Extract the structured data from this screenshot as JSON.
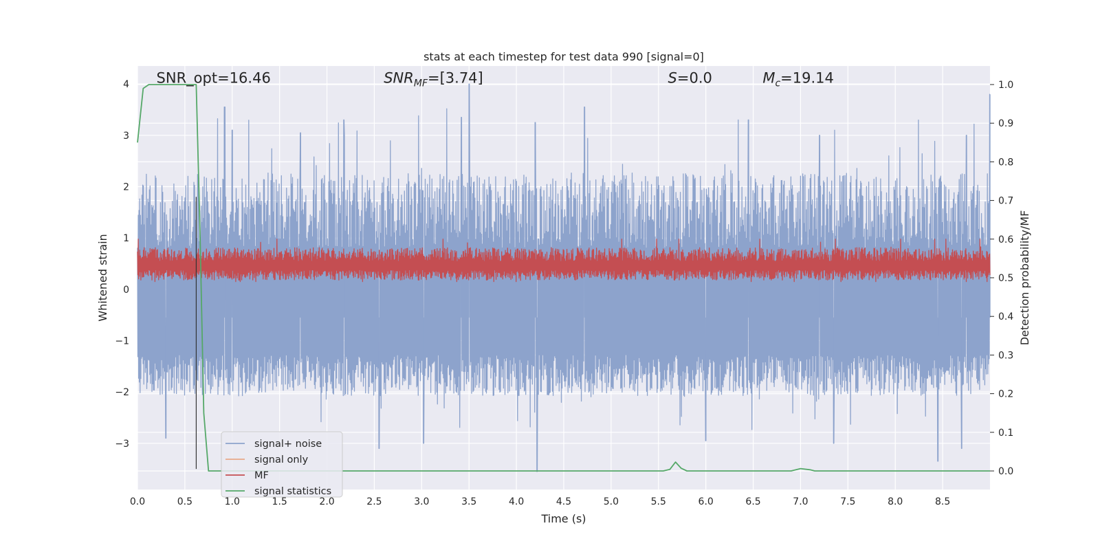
{
  "chart_data": {
    "type": "line",
    "title": "stats at each timestep for test data 990 [signal=0]",
    "xlabel": "Time (s)",
    "ylabel": "Whitened strain",
    "y2label": "Detection probability/MF",
    "xlim": [
      0.0,
      9.0
    ],
    "ylim": [
      -3.9,
      4.35
    ],
    "y2lim": [
      -0.048,
      1.048
    ],
    "xticks": [
      "0.0",
      "0.5",
      "1.0",
      "1.5",
      "2.0",
      "2.5",
      "3.0",
      "3.5",
      "4.0",
      "4.5",
      "5.0",
      "5.5",
      "6.0",
      "6.5",
      "7.0",
      "7.5",
      "8.0",
      "8.5"
    ],
    "xtick_values": [
      0,
      0.5,
      1,
      1.5,
      2,
      2.5,
      3,
      3.5,
      4,
      4.5,
      5,
      5.5,
      6,
      6.5,
      7,
      7.5,
      8,
      8.5
    ],
    "yticks": [
      "4",
      "3",
      "2",
      "1",
      "0",
      "−1",
      "−2",
      "−3"
    ],
    "ytick_values": [
      4,
      3,
      2,
      1,
      0,
      -1,
      -2,
      -3
    ],
    "y2ticks": [
      "1.0",
      "0.9",
      "0.8",
      "0.7",
      "0.6",
      "0.5",
      "0.4",
      "0.3",
      "0.2",
      "0.1",
      "0.0"
    ],
    "y2tick_values": [
      1.0,
      0.9,
      0.8,
      0.7,
      0.6,
      0.5,
      0.4,
      0.3,
      0.2,
      0.1,
      0.0
    ],
    "grid": true,
    "legend_position": "lower-left",
    "annotations": [
      {
        "text": "SNR_opt=16.46",
        "x": 0.2,
        "y": 4.1
      },
      {
        "text": "SNR_MF=[3.74]",
        "x": 2.6,
        "y": 4.1
      },
      {
        "text": "S=0.0",
        "x": 5.6,
        "y": 4.1
      },
      {
        "text": "M_c=19.14",
        "x": 6.6,
        "y": 4.1
      }
    ],
    "vline": {
      "x": 0.62,
      "y_from": -3.5,
      "y_to": 1.8
    },
    "series": [
      {
        "name": "signal+ noise",
        "axis": "left",
        "color": "#8da3cc",
        "kind": "noise",
        "sample_count": 2300,
        "mean": -0.55,
        "envelope_upper_typical": 1.9,
        "envelope_lower_typical": -2.0,
        "peaks": [
          {
            "x": 0.92,
            "y": 3.55
          },
          {
            "x": 1.0,
            "y": 3.1
          },
          {
            "x": 1.72,
            "y": 3.05
          },
          {
            "x": 2.18,
            "y": 3.3
          },
          {
            "x": 3.42,
            "y": 3.35
          },
          {
            "x": 3.5,
            "y": 4.0
          },
          {
            "x": 4.2,
            "y": 3.25
          },
          {
            "x": 4.72,
            "y": 3.55
          },
          {
            "x": 6.45,
            "y": 3.3
          },
          {
            "x": 7.2,
            "y": 3.0
          },
          {
            "x": 8.75,
            "y": 3.0
          },
          {
            "x": 9.0,
            "y": 3.8
          }
        ],
        "troughs": [
          {
            "x": 0.3,
            "y": -2.9
          },
          {
            "x": 2.55,
            "y": -3.1
          },
          {
            "x": 3.02,
            "y": -3.0
          },
          {
            "x": 4.22,
            "y": -3.55
          },
          {
            "x": 6.0,
            "y": -2.95
          },
          {
            "x": 7.35,
            "y": -3.0
          },
          {
            "x": 8.45,
            "y": -3.35
          },
          {
            "x": 8.7,
            "y": -3.1
          }
        ]
      },
      {
        "name": "signal only",
        "axis": "left",
        "color": "#e8a988",
        "kind": "line",
        "x": [],
        "y": []
      },
      {
        "name": "MF",
        "axis": "right",
        "color": "#c44e52",
        "kind": "noise",
        "sample_count": 2300,
        "mean": 0.53,
        "envelope_upper_typical": 0.57,
        "envelope_lower_typical": 0.5,
        "max": 0.6,
        "min": 0.49
      },
      {
        "name": "signal statistics",
        "axis": "right",
        "color": "#55a868",
        "kind": "line",
        "x": [
          0.0,
          0.06,
          0.12,
          0.2,
          0.35,
          0.5,
          0.58,
          0.62,
          0.66,
          0.7,
          0.75,
          1.0,
          2.0,
          3.0,
          4.0,
          5.0,
          5.55,
          5.62,
          5.68,
          5.74,
          5.8,
          6.0,
          6.5,
          6.9,
          7.0,
          7.1,
          7.15,
          7.5,
          8.0,
          8.5,
          9.0
        ],
        "y": [
          0.85,
          0.99,
          1.0,
          1.0,
          1.0,
          1.0,
          1.0,
          1.0,
          0.62,
          0.15,
          0.0,
          0.0,
          0.0,
          0.0,
          0.0,
          0.0,
          0.0,
          0.004,
          0.023,
          0.007,
          0.0,
          0.0,
          0.0,
          0.0,
          0.006,
          0.003,
          0.0,
          0.0,
          0.0,
          0.0,
          0.0
        ]
      }
    ]
  }
}
